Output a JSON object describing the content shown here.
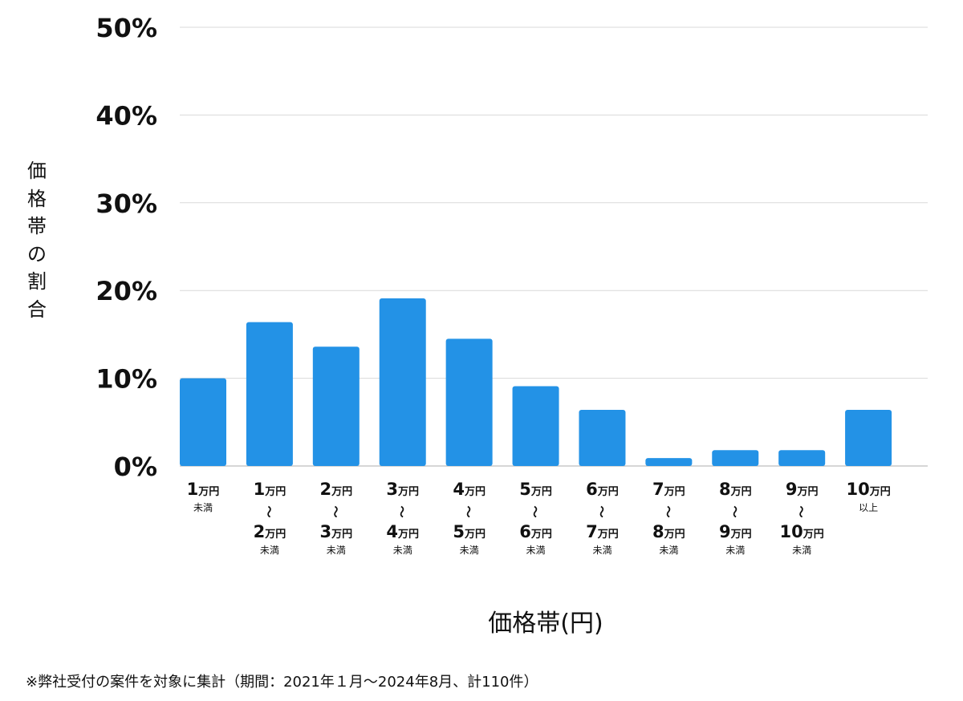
{
  "chart_data": {
    "type": "bar",
    "ylabel": "価格帯の割合",
    "xlabel": "価格帯(円)",
    "ylim": [
      0,
      50
    ],
    "yticks": [
      "0%",
      "10%",
      "20%",
      "30%",
      "40%",
      "50%"
    ],
    "grid": true,
    "bar_color": "#2392e6",
    "categories": [
      {
        "from": "1",
        "from_unit": "万円",
        "to": "",
        "to_unit": "",
        "note": "未満"
      },
      {
        "from": "1",
        "from_unit": "万円",
        "to": "2",
        "to_unit": "万円",
        "note": "未満"
      },
      {
        "from": "2",
        "from_unit": "万円",
        "to": "3",
        "to_unit": "万円",
        "note": "未満"
      },
      {
        "from": "3",
        "from_unit": "万円",
        "to": "4",
        "to_unit": "万円",
        "note": "未満"
      },
      {
        "from": "4",
        "from_unit": "万円",
        "to": "5",
        "to_unit": "万円",
        "note": "未満"
      },
      {
        "from": "5",
        "from_unit": "万円",
        "to": "6",
        "to_unit": "万円",
        "note": "未満"
      },
      {
        "from": "6",
        "from_unit": "万円",
        "to": "7",
        "to_unit": "万円",
        "note": "未満"
      },
      {
        "from": "7",
        "from_unit": "万円",
        "to": "8",
        "to_unit": "万円",
        "note": "未満"
      },
      {
        "from": "8",
        "from_unit": "万円",
        "to": "9",
        "to_unit": "万円",
        "note": "未満"
      },
      {
        "from": "9",
        "from_unit": "万円",
        "to": "10",
        "to_unit": "万円",
        "note": "未満"
      },
      {
        "from": "10",
        "from_unit": "万円",
        "to": "",
        "to_unit": "",
        "note": "以上"
      }
    ],
    "range_mark": "〜",
    "values": [
      10.0,
      16.4,
      13.6,
      19.1,
      14.5,
      9.1,
      6.4,
      0.9,
      1.8,
      1.8,
      6.4
    ]
  },
  "footnote": "※弊社受付の案件を対象に集計（期間：2021年１月〜2024年8月、計110件）"
}
